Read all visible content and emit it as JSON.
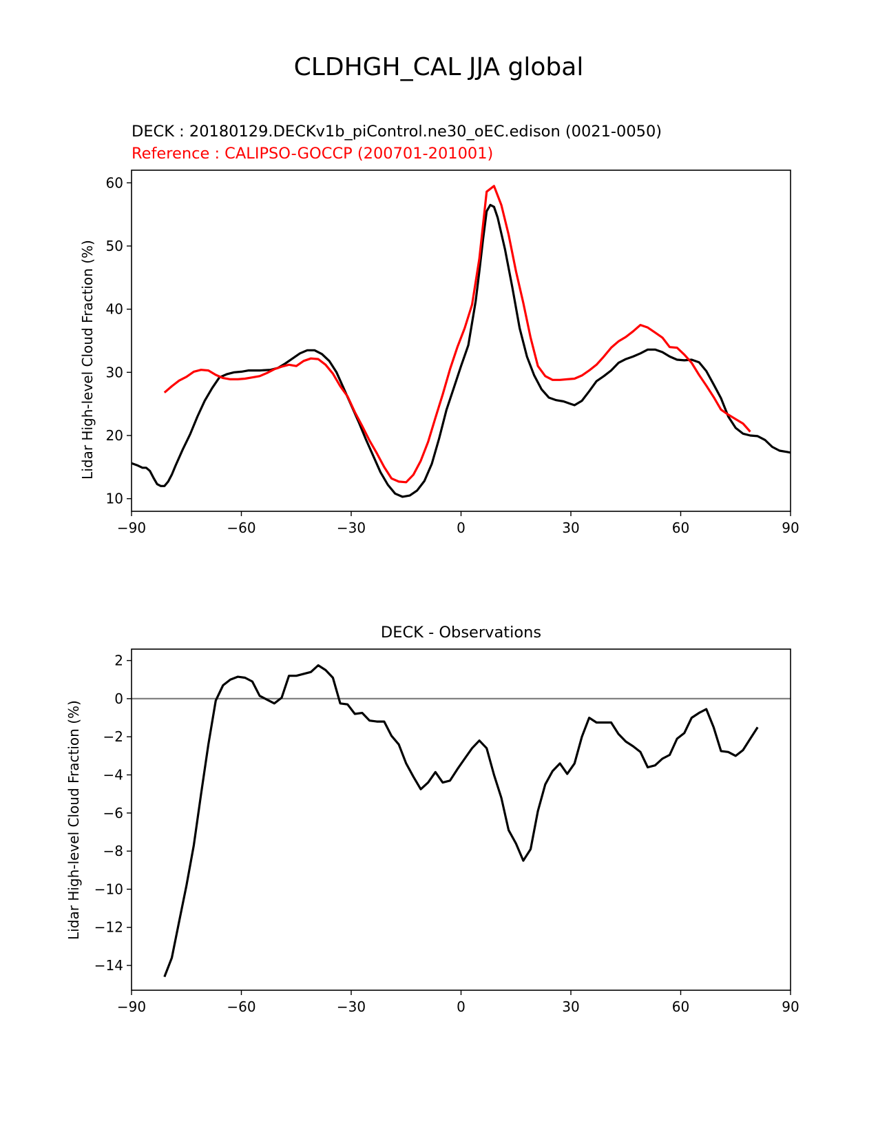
{
  "figure_title": "CLDHGH_CAL JJA global",
  "colors": {
    "model": "#000000",
    "reference": "#ff0000",
    "zero_line": "#808080"
  },
  "chart_data": [
    {
      "type": "line",
      "title_model": "DECK : 20180129.DECKv1b_piControl.ne30_oEC.edison (0021-0050)",
      "title_reference": "Reference : CALIPSO-GOCCP (200701-201001)",
      "xlabel": "",
      "ylabel": "Lidar High-level Cloud Fraction (%)",
      "xlim": [
        -90,
        90
      ],
      "ylim": [
        8,
        62
      ],
      "xticks": [
        -90,
        -60,
        -30,
        0,
        30,
        60,
        90
      ],
      "xtick_labels": [
        "−90",
        "−60",
        "−30",
        "0",
        "30",
        "60",
        "90"
      ],
      "yticks": [
        10,
        20,
        30,
        40,
        50,
        60
      ],
      "ytick_labels": [
        "10",
        "20",
        "30",
        "40",
        "50",
        "60"
      ],
      "series": [
        {
          "name": "DECK",
          "color": "#000000",
          "points": [
            [
              -90,
              15.6
            ],
            [
              -88.5,
              15.3
            ],
            [
              -87,
              14.9
            ],
            [
              -86,
              14.9
            ],
            [
              -85,
              14.4
            ],
            [
              -84,
              13.3
            ],
            [
              -83,
              12.3
            ],
            [
              -82,
              12.0
            ],
            [
              -81,
              12.0
            ],
            [
              -80,
              12.7
            ],
            [
              -79,
              13.8
            ],
            [
              -78,
              15.2
            ],
            [
              -76,
              17.8
            ],
            [
              -74,
              20.2
            ],
            [
              -72,
              23.0
            ],
            [
              -70,
              25.5
            ],
            [
              -68,
              27.5
            ],
            [
              -66,
              29.2
            ],
            [
              -64,
              29.7
            ],
            [
              -62,
              30.0
            ],
            [
              -60,
              30.1
            ],
            [
              -58,
              30.3
            ],
            [
              -55,
              30.3
            ],
            [
              -52,
              30.4
            ],
            [
              -50,
              30.7
            ],
            [
              -48,
              31.4
            ],
            [
              -46,
              32.2
            ],
            [
              -44,
              33.0
            ],
            [
              -42,
              33.5
            ],
            [
              -40,
              33.5
            ],
            [
              -38,
              32.9
            ],
            [
              -36,
              31.8
            ],
            [
              -34,
              30.0
            ],
            [
              -32,
              27.4
            ],
            [
              -30,
              24.8
            ],
            [
              -28,
              22.2
            ],
            [
              -26,
              19.4
            ],
            [
              -24,
              16.8
            ],
            [
              -22,
              14.2
            ],
            [
              -20,
              12.2
            ],
            [
              -18,
              10.8
            ],
            [
              -16,
              10.3
            ],
            [
              -14,
              10.5
            ],
            [
              -12,
              11.3
            ],
            [
              -10,
              12.8
            ],
            [
              -8,
              15.5
            ],
            [
              -6,
              19.5
            ],
            [
              -4,
              24.0
            ],
            [
              -2,
              27.5
            ],
            [
              0,
              31.0
            ],
            [
              2,
              34.3
            ],
            [
              4,
              41.3
            ],
            [
              5,
              46.0
            ],
            [
              6,
              51.0
            ],
            [
              7,
              55.5
            ],
            [
              8,
              56.5
            ],
            [
              9,
              56.2
            ],
            [
              10,
              54.5
            ],
            [
              12,
              49.5
            ],
            [
              14,
              43.5
            ],
            [
              16,
              37.0
            ],
            [
              18,
              32.5
            ],
            [
              20,
              29.5
            ],
            [
              22,
              27.3
            ],
            [
              24,
              26.0
            ],
            [
              26,
              25.6
            ],
            [
              28,
              25.4
            ],
            [
              30,
              25.0
            ],
            [
              31,
              24.8
            ],
            [
              33,
              25.5
            ],
            [
              35,
              27.0
            ],
            [
              37,
              28.6
            ],
            [
              39,
              29.4
            ],
            [
              41,
              30.3
            ],
            [
              43,
              31.5
            ],
            [
              45,
              32.1
            ],
            [
              47,
              32.5
            ],
            [
              49,
              33.0
            ],
            [
              51,
              33.6
            ],
            [
              53,
              33.6
            ],
            [
              55,
              33.2
            ],
            [
              57,
              32.5
            ],
            [
              59,
              32.0
            ],
            [
              61,
              31.9
            ],
            [
              63,
              32.0
            ],
            [
              65,
              31.6
            ],
            [
              67,
              30.2
            ],
            [
              69,
              28.1
            ],
            [
              71,
              25.9
            ],
            [
              73,
              23.0
            ],
            [
              75,
              21.2
            ],
            [
              77,
              20.3
            ],
            [
              79,
              20.0
            ],
            [
              81,
              19.9
            ],
            [
              83,
              19.3
            ],
            [
              85,
              18.2
            ],
            [
              87,
              17.6
            ],
            [
              89,
              17.4
            ],
            [
              90,
              17.3
            ]
          ]
        },
        {
          "name": "CALIPSO-GOCCP",
          "color": "#ff0000",
          "points": [
            [
              -81,
              26.8
            ],
            [
              -79,
              27.8
            ],
            [
              -77,
              28.7
            ],
            [
              -75,
              29.3
            ],
            [
              -73,
              30.1
            ],
            [
              -71,
              30.4
            ],
            [
              -69,
              30.3
            ],
            [
              -67,
              29.6
            ],
            [
              -65,
              29.1
            ],
            [
              -63,
              28.9
            ],
            [
              -61,
              28.9
            ],
            [
              -59,
              29.0
            ],
            [
              -57,
              29.2
            ],
            [
              -55,
              29.4
            ],
            [
              -53,
              29.9
            ],
            [
              -51,
              30.5
            ],
            [
              -49,
              30.9
            ],
            [
              -47,
              31.2
            ],
            [
              -45,
              31.0
            ],
            [
              -43,
              31.8
            ],
            [
              -41,
              32.2
            ],
            [
              -39,
              32.1
            ],
            [
              -37,
              31.2
            ],
            [
              -35,
              29.8
            ],
            [
              -33,
              27.8
            ],
            [
              -31,
              26.2
            ],
            [
              -29,
              23.7
            ],
            [
              -27,
              21.5
            ],
            [
              -25,
              19.2
            ],
            [
              -23,
              17.2
            ],
            [
              -21,
              15.0
            ],
            [
              -19,
              13.2
            ],
            [
              -17,
              12.7
            ],
            [
              -15,
              12.6
            ],
            [
              -13,
              13.8
            ],
            [
              -11,
              16.0
            ],
            [
              -9,
              19.0
            ],
            [
              -7,
              22.8
            ],
            [
              -5,
              26.5
            ],
            [
              -3,
              30.5
            ],
            [
              -1,
              34.0
            ],
            [
              1,
              37.0
            ],
            [
              3,
              40.7
            ],
            [
              5,
              48.0
            ],
            [
              7,
              58.6
            ],
            [
              9,
              59.5
            ],
            [
              11,
              56.5
            ],
            [
              13,
              51.8
            ],
            [
              15,
              46.0
            ],
            [
              17,
              41.0
            ],
            [
              19,
              35.5
            ],
            [
              21,
              31.0
            ],
            [
              23,
              29.4
            ],
            [
              25,
              28.8
            ],
            [
              27,
              28.8
            ],
            [
              29,
              28.9
            ],
            [
              31,
              29.0
            ],
            [
              33,
              29.5
            ],
            [
              35,
              30.3
            ],
            [
              37,
              31.2
            ],
            [
              39,
              32.5
            ],
            [
              41,
              33.9
            ],
            [
              43,
              34.9
            ],
            [
              45,
              35.6
            ],
            [
              47,
              36.5
            ],
            [
              49,
              37.5
            ],
            [
              51,
              37.1
            ],
            [
              53,
              36.3
            ],
            [
              55,
              35.5
            ],
            [
              57,
              34.0
            ],
            [
              59,
              33.9
            ],
            [
              61,
              32.8
            ],
            [
              63,
              31.5
            ],
            [
              65,
              29.6
            ],
            [
              67,
              27.9
            ],
            [
              69,
              26.1
            ],
            [
              71,
              24.1
            ],
            [
              73,
              23.3
            ],
            [
              75,
              22.6
            ],
            [
              77,
              21.9
            ],
            [
              79,
              20.6
            ]
          ]
        }
      ]
    },
    {
      "type": "line",
      "title": "DECK - Observations",
      "xlabel": "",
      "ylabel": "Lidar High-level Cloud Fraction (%)",
      "xlim": [
        -90,
        90
      ],
      "ylim": [
        -15.3,
        2.6
      ],
      "xticks": [
        -90,
        -60,
        -30,
        0,
        30,
        60,
        90
      ],
      "xtick_labels": [
        "−90",
        "−60",
        "−30",
        "0",
        "30",
        "60",
        "90"
      ],
      "yticks": [
        2,
        0,
        -2,
        -4,
        -6,
        -8,
        -10,
        -12,
        -14
      ],
      "ytick_labels": [
        "2",
        "0",
        "−2",
        "−4",
        "−6",
        "−8",
        "−10",
        "−12",
        "−14"
      ],
      "zero_line": 0,
      "series": [
        {
          "name": "DECK - Observations",
          "color": "#000000",
          "points": [
            [
              -81,
              -14.6
            ],
            [
              -79,
              -13.6
            ],
            [
              -77,
              -11.7
            ],
            [
              -75,
              -9.8
            ],
            [
              -73,
              -7.7
            ],
            [
              -71,
              -5.0
            ],
            [
              -69,
              -2.4
            ],
            [
              -67,
              -0.1
            ],
            [
              -65,
              0.7
            ],
            [
              -63,
              1.0
            ],
            [
              -61,
              1.15
            ],
            [
              -59,
              1.1
            ],
            [
              -57,
              0.9
            ],
            [
              -55,
              0.15
            ],
            [
              -53,
              -0.05
            ],
            [
              -51,
              -0.25
            ],
            [
              -49,
              0.05
            ],
            [
              -47,
              1.2
            ],
            [
              -45,
              1.2
            ],
            [
              -43,
              1.3
            ],
            [
              -41,
              1.4
            ],
            [
              -39,
              1.75
            ],
            [
              -37,
              1.5
            ],
            [
              -35,
              1.1
            ],
            [
              -33,
              -0.25
            ],
            [
              -31,
              -0.3
            ],
            [
              -29,
              -0.8
            ],
            [
              -27,
              -0.75
            ],
            [
              -25,
              -1.15
            ],
            [
              -23,
              -1.2
            ],
            [
              -21,
              -1.2
            ],
            [
              -19,
              -1.95
            ],
            [
              -17,
              -2.4
            ],
            [
              -15,
              -3.4
            ],
            [
              -13,
              -4.1
            ],
            [
              -11,
              -4.75
            ],
            [
              -9,
              -4.4
            ],
            [
              -7,
              -3.85
            ],
            [
              -5,
              -4.4
            ],
            [
              -3,
              -4.3
            ],
            [
              -1,
              -3.7
            ],
            [
              1,
              -3.15
            ],
            [
              3,
              -2.6
            ],
            [
              5,
              -2.2
            ],
            [
              7,
              -2.6
            ],
            [
              9,
              -4.0
            ],
            [
              11,
              -5.2
            ],
            [
              13,
              -6.9
            ],
            [
              15,
              -7.6
            ],
            [
              17,
              -8.5
            ],
            [
              19,
              -7.9
            ],
            [
              21,
              -5.9
            ],
            [
              23,
              -4.5
            ],
            [
              25,
              -3.8
            ],
            [
              27,
              -3.4
            ],
            [
              29,
              -3.95
            ],
            [
              31,
              -3.4
            ],
            [
              33,
              -2.0
            ],
            [
              35,
              -1.0
            ],
            [
              37,
              -1.25
            ],
            [
              39,
              -1.25
            ],
            [
              41,
              -1.25
            ],
            [
              43,
              -1.85
            ],
            [
              45,
              -2.25
            ],
            [
              47,
              -2.5
            ],
            [
              49,
              -2.8
            ],
            [
              51,
              -3.6
            ],
            [
              53,
              -3.5
            ],
            [
              55,
              -3.15
            ],
            [
              57,
              -2.95
            ],
            [
              59,
              -2.1
            ],
            [
              61,
              -1.8
            ],
            [
              63,
              -1.0
            ],
            [
              65,
              -0.75
            ],
            [
              67,
              -0.55
            ],
            [
              69,
              -1.5
            ],
            [
              71,
              -2.75
            ],
            [
              73,
              -2.8
            ],
            [
              75,
              -3.0
            ],
            [
              77,
              -2.7
            ],
            [
              79,
              -2.1
            ],
            [
              81,
              -1.5
            ]
          ]
        }
      ]
    }
  ]
}
